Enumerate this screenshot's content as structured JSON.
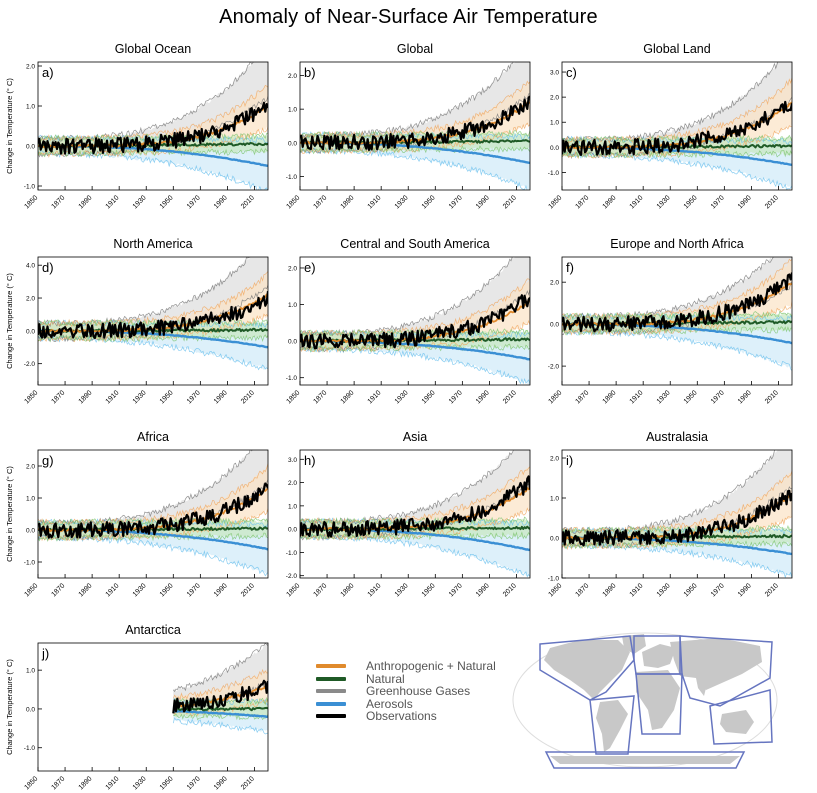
{
  "title": "Anomaly of Near-Surface Air Temperature",
  "ylabel": "Change in Temperature (° C)",
  "xticks": [
    "1850",
    "1870",
    "1890",
    "1910",
    "1930",
    "1950",
    "1970",
    "1990",
    "2010"
  ],
  "colors": {
    "anthro": "#e08a2c",
    "anthro_band": "#fbe2c4",
    "natural": "#1f5a26",
    "natural_band": "#c7e7bf",
    "ghg": "#8a8a8a",
    "ghg_band": "#dddddd",
    "aerosol": "#3a8fd4",
    "aerosol_band": "#cfe9f8",
    "obs": "#000000",
    "map_land": "#c8c8c8",
    "map_outline": "#6675c0"
  },
  "legend": [
    {
      "label": "Anthropogenic + Natural",
      "color": "#e08a2c"
    },
    {
      "label": "Natural",
      "color": "#1f5a26"
    },
    {
      "label": "Greenhouse Gases",
      "color": "#8a8a8a"
    },
    {
      "label": "Aerosols",
      "color": "#3a8fd4"
    },
    {
      "label": "Observations",
      "color": "#000000"
    }
  ],
  "chart_data": [
    {
      "panel": "a)",
      "title": "Global Ocean",
      "type": "line",
      "x_range": [
        1850,
        2020
      ],
      "ylim": [
        -1.1,
        2.1
      ],
      "yticks": [
        "-1.0",
        "0.0",
        "1.0",
        "2.0"
      ],
      "ytick_values": [
        -1,
        0,
        1,
        2
      ],
      "final": {
        "ghg": 1.9,
        "anthro": 1.0,
        "natural": 0.1,
        "aerosol": -0.5,
        "obs": 1.0
      }
    },
    {
      "panel": "b)",
      "title": "Global",
      "type": "line",
      "x_range": [
        1850,
        2020
      ],
      "ylim": [
        -1.4,
        2.4
      ],
      "yticks": [
        "-1.0",
        "0.0",
        "1.0",
        "2.0"
      ],
      "ytick_values": [
        -1,
        0,
        1,
        2
      ],
      "final": {
        "ghg": 2.2,
        "anthro": 1.2,
        "natural": 0.1,
        "aerosol": -0.6,
        "obs": 1.2
      }
    },
    {
      "panel": "c)",
      "title": "Global Land",
      "type": "line",
      "x_range": [
        1850,
        2020
      ],
      "ylim": [
        -1.7,
        3.4
      ],
      "yticks": [
        "-1.0",
        "0.0",
        "1.0",
        "2.0",
        "3.0"
      ],
      "ytick_values": [
        -1,
        0,
        1,
        2,
        3
      ],
      "final": {
        "ghg": 3.0,
        "anthro": 1.8,
        "natural": 0.1,
        "aerosol": -0.7,
        "obs": 1.8
      }
    },
    {
      "panel": "d)",
      "title": "North America",
      "type": "line",
      "x_range": [
        1850,
        2020
      ],
      "ylim": [
        -3.3,
        4.5
      ],
      "yticks": [
        "-2.0",
        "0.0",
        "2.0",
        "4.0"
      ],
      "ytick_values": [
        -2,
        0,
        2,
        4
      ],
      "final": {
        "ghg": 4.2,
        "anthro": 2.2,
        "natural": 0.1,
        "aerosol": -1.0,
        "obs": 2.0
      }
    },
    {
      "panel": "e)",
      "title": "Central and South America",
      "type": "line",
      "x_range": [
        1850,
        2020
      ],
      "ylim": [
        -1.2,
        2.3
      ],
      "yticks": [
        "-1.0",
        "0.0",
        "1.0",
        "2.0"
      ],
      "ytick_values": [
        -1,
        0,
        1,
        2
      ],
      "final": {
        "ghg": 2.1,
        "anthro": 1.1,
        "natural": 0.1,
        "aerosol": -0.5,
        "obs": 1.2
      }
    },
    {
      "panel": "f)",
      "title": "Europe and North Africa",
      "type": "line",
      "x_range": [
        1850,
        2020
      ],
      "ylim": [
        -2.9,
        3.2
      ],
      "yticks": [
        "-2.0",
        "0.0",
        "2.0"
      ],
      "ytick_values": [
        -2,
        0,
        2
      ],
      "final": {
        "ghg": 3.0,
        "anthro": 2.0,
        "natural": 0.2,
        "aerosol": -0.9,
        "obs": 2.1
      }
    },
    {
      "panel": "g)",
      "title": "Africa",
      "type": "line",
      "x_range": [
        1850,
        2020
      ],
      "ylim": [
        -1.5,
        2.5
      ],
      "yticks": [
        "-1.0",
        "0.0",
        "1.0",
        "2.0"
      ],
      "ytick_values": [
        -1,
        0,
        1,
        2
      ],
      "final": {
        "ghg": 2.3,
        "anthro": 1.3,
        "natural": 0.1,
        "aerosol": -0.6,
        "obs": 1.3
      }
    },
    {
      "panel": "h)",
      "title": "Asia",
      "type": "line",
      "x_range": [
        1850,
        2020
      ],
      "ylim": [
        -2.1,
        3.4
      ],
      "yticks": [
        "-2.0",
        "-1.0",
        "0.0",
        "1.0",
        "2.0",
        "3.0"
      ],
      "ytick_values": [
        -2,
        -1,
        0,
        1,
        2,
        3
      ],
      "final": {
        "ghg": 3.1,
        "anthro": 1.8,
        "natural": 0.1,
        "aerosol": -0.9,
        "obs": 2.0
      }
    },
    {
      "panel": "i)",
      "title": "Australasia",
      "type": "line",
      "x_range": [
        1850,
        2020
      ],
      "ylim": [
        -1.0,
        2.2
      ],
      "yticks": [
        "-1.0",
        "0.0",
        "1.0",
        "2.0"
      ],
      "ytick_values": [
        -1,
        0,
        1,
        2
      ],
      "final": {
        "ghg": 2.0,
        "anthro": 1.1,
        "natural": 0.1,
        "aerosol": -0.4,
        "obs": 1.1
      }
    },
    {
      "panel": "j)",
      "title": "Antarctica",
      "type": "line",
      "x_range": [
        1850,
        2020
      ],
      "data_start": 1950,
      "ylim": [
        -1.6,
        1.7
      ],
      "yticks": [
        "-1.0",
        "0.0",
        "1.0"
      ],
      "ytick_values": [
        -1,
        0,
        1
      ],
      "final": {
        "ghg": 1.2,
        "anthro": 0.6,
        "natural": 0.0,
        "aerosol": -0.2,
        "obs": 0.6
      }
    }
  ]
}
